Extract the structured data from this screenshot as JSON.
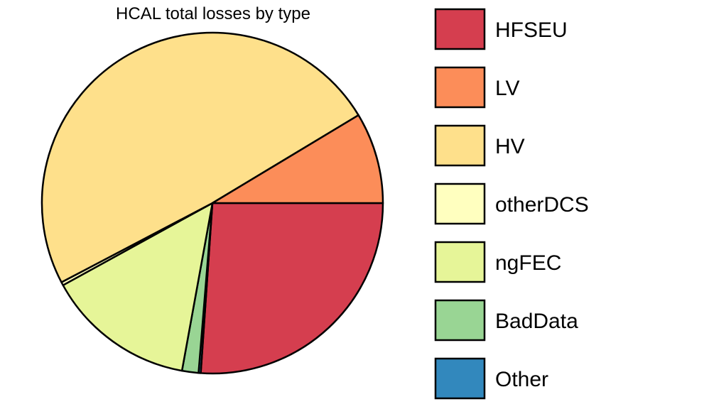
{
  "chart_data": {
    "type": "pie",
    "title": "HCAL total losses by type",
    "categories": [
      "HFSEU",
      "LV",
      "HV",
      "otherDCS",
      "ngFEC",
      "BadData",
      "Other"
    ],
    "values": [
      25.1,
      8.3,
      47.2,
      0.3,
      13.6,
      1.5,
      0.2
    ],
    "colors": [
      "#D53E4F",
      "#FC8D59",
      "#FEE08B",
      "#FFFFBF",
      "#E6F598",
      "#99D594",
      "#3288BD"
    ],
    "slice_order": [
      "HFSEU",
      "Other",
      "BadData",
      "ngFEC",
      "otherDCS",
      "HV",
      "LV"
    ],
    "start_angle_deg": 0,
    "direction": "clockwise",
    "legend_position": "right"
  }
}
